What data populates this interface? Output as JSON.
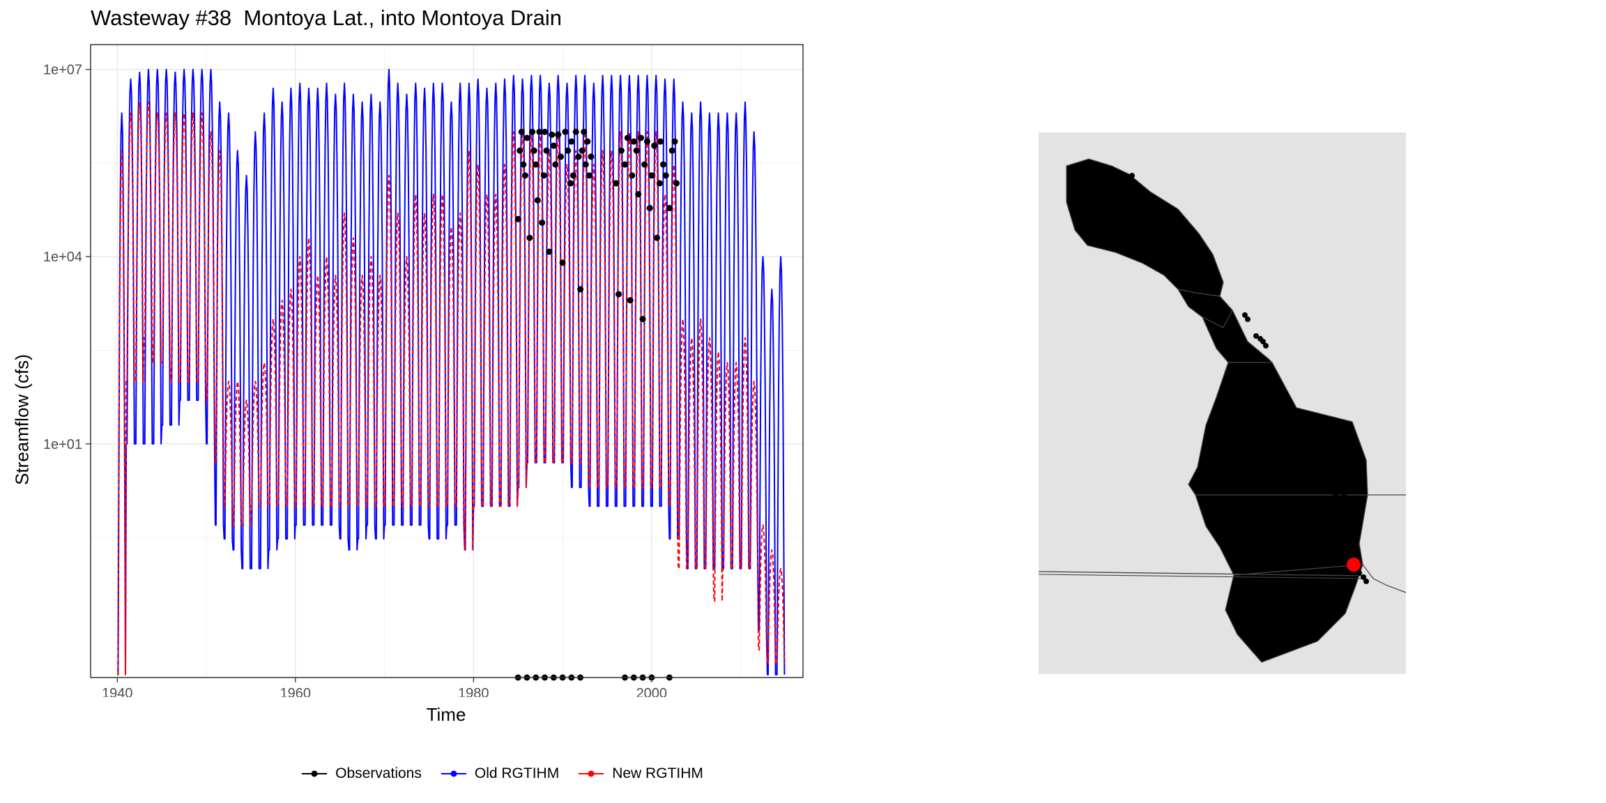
{
  "chart_data": [
    {
      "type": "line",
      "title": "Wasteway #38  Montoya Lat., into Montoya Drain",
      "xlabel": "Time",
      "ylabel": "Streamflow (cfs)",
      "x_range": [
        1937,
        2017
      ],
      "y_scale": "log10",
      "y_range": [
        0.0018,
        25000000
      ],
      "x_ticks": [
        "1940",
        "1960",
        "1980",
        "2000"
      ],
      "y_ticks": [
        "1e+01",
        "1e+04",
        "1e+07"
      ],
      "grid": true,
      "legend_position": "bottom",
      "legend": [
        "Observations",
        "Old RGTIHM",
        "New RGTIHM"
      ],
      "colors": {
        "Observations": "#000000",
        "Old RGTIHM": "#0000ff",
        "New RGTIHM": "#ff0000"
      },
      "series": [
        {
          "name": "Old RGTIHM",
          "style": "solid",
          "approximation": "monthly seasonal cycle; per-year peak and low flow",
          "years": [
            1940,
            1941,
            1942,
            1943,
            1944,
            1945,
            1946,
            1947,
            1948,
            1949,
            1950,
            1951,
            1952,
            1953,
            1954,
            1955,
            1956,
            1957,
            1958,
            1959,
            1960,
            1961,
            1962,
            1963,
            1964,
            1965,
            1966,
            1967,
            1968,
            1969,
            1970,
            1971,
            1972,
            1973,
            1974,
            1975,
            1976,
            1977,
            1978,
            1979,
            1980,
            1981,
            1982,
            1983,
            1984,
            1985,
            1986,
            1987,
            1988,
            1989,
            1990,
            1991,
            1992,
            1993,
            1994,
            1995,
            1996,
            1997,
            1998,
            1999,
            2000,
            2001,
            2002,
            2003,
            2004,
            2005,
            2006,
            2007,
            2008,
            2009,
            2010,
            2011,
            2012,
            2013,
            2014
          ],
          "annual_peak": [
            2000000,
            7000000,
            9000000,
            10000000,
            10000000,
            10000000,
            9000000,
            10000000,
            10000000,
            10000000,
            10000000,
            3000000,
            2000000,
            500000,
            200000,
            1000000,
            2000000,
            5000000,
            3000000,
            5000000,
            6000000,
            5000000,
            5000000,
            6000000,
            4000000,
            6000000,
            4000000,
            3000000,
            4000000,
            3000000,
            10000000,
            6000000,
            4000000,
            6000000,
            5000000,
            6000000,
            6000000,
            3000000,
            6000000,
            6000000,
            7000000,
            5000000,
            6000000,
            7000000,
            8000000,
            7000000,
            8000000,
            8000000,
            6000000,
            8000000,
            6000000,
            8000000,
            8000000,
            6000000,
            8000000,
            8000000,
            8000000,
            8000000,
            8000000,
            8000000,
            8000000,
            7000000,
            7000000,
            3000000,
            2000000,
            3000000,
            2000000,
            2000000,
            2000000,
            2000000,
            3000000,
            1000000,
            10000,
            3000,
            10000
          ],
          "annual_low": [
            0.002,
            10,
            10,
            10,
            10,
            20,
            20,
            50,
            50,
            50,
            10,
            0.5,
            0.3,
            0.2,
            0.1,
            0.1,
            0.1,
            0.2,
            0.3,
            0.3,
            0.5,
            0.5,
            0.5,
            0.5,
            0.5,
            0.3,
            0.2,
            0.3,
            0.5,
            0.3,
            0.5,
            0.5,
            0.5,
            0.5,
            0.5,
            0.3,
            0.3,
            0.5,
            0.5,
            0.2,
            1,
            1,
            1,
            1,
            1,
            2,
            5,
            5,
            5,
            5,
            5,
            2,
            2,
            1,
            1,
            1,
            1,
            1,
            1,
            1,
            1,
            1,
            0.3,
            0.3,
            0.1,
            0.1,
            0.1,
            0.1,
            0.1,
            0.1,
            0.1,
            0.1,
            0.01,
            0.002,
            0.002
          ]
        },
        {
          "name": "New RGTIHM",
          "style": "dashed",
          "approximation": "monthly seasonal cycle; per-year peak and low flow",
          "years": [
            1940,
            1941,
            1942,
            1943,
            1944,
            1945,
            1946,
            1947,
            1948,
            1949,
            1950,
            1951,
            1952,
            1953,
            1954,
            1955,
            1956,
            1957,
            1958,
            1959,
            1960,
            1961,
            1962,
            1963,
            1964,
            1965,
            1966,
            1967,
            1968,
            1969,
            1970,
            1971,
            1972,
            1973,
            1974,
            1975,
            1976,
            1977,
            1978,
            1979,
            1980,
            1981,
            1982,
            1983,
            1984,
            1985,
            1986,
            1987,
            1988,
            1989,
            1990,
            1991,
            1992,
            1993,
            1994,
            1995,
            1996,
            1997,
            1998,
            1999,
            2000,
            2001,
            2002,
            2003,
            2004,
            2005,
            2006,
            2007,
            2008,
            2009,
            2010,
            2011,
            2012,
            2013,
            2014
          ],
          "annual_peak": [
            500000,
            2000000,
            3000000,
            3000000,
            2000000,
            2000000,
            2000000,
            2000000,
            2000000,
            2000000,
            1000000,
            500000,
            100,
            100,
            50,
            100,
            200,
            1000,
            2000,
            3000,
            10000,
            20000,
            5000,
            10000,
            5000,
            50000,
            20000,
            5000,
            10000,
            5000,
            200000,
            50000,
            10000,
            100000,
            50000,
            100000,
            100000,
            30000,
            50000,
            500000,
            300000,
            100000,
            100000,
            300000,
            1000000,
            1000000,
            1000000,
            1000000,
            500000,
            1000000,
            300000,
            500000,
            1000000,
            300000,
            500000,
            500000,
            1000000,
            1000000,
            1000000,
            1000000,
            1000000,
            100000,
            300000,
            1000,
            500,
            1000,
            500,
            300,
            200,
            200,
            500,
            100,
            0.5,
            0.2,
            0.1
          ],
          "annual_low": [
            0.002,
            100,
            100,
            500,
            200,
            200,
            100,
            100,
            100,
            100,
            50,
            5,
            1,
            0.5,
            0.5,
            1,
            1,
            1,
            1,
            1,
            1,
            1,
            1,
            1,
            1,
            1,
            1,
            1,
            1,
            1,
            1,
            1,
            1,
            1,
            1,
            1,
            1,
            1,
            1,
            0.2,
            1,
            1,
            1,
            1,
            1,
            2,
            5,
            5,
            5,
            5,
            5,
            5,
            5,
            2,
            2,
            2,
            2,
            2,
            2,
            2,
            2,
            2,
            1,
            0.1,
            0.1,
            0.1,
            0.1,
            0.03,
            0.1,
            0.1,
            0.1,
            0.1,
            0.005,
            0.003,
            0.003
          ]
        },
        {
          "name": "Observations",
          "style": "points",
          "points": [
            {
              "x": 1985.0,
              "y": 40000
            },
            {
              "x": 1985.2,
              "y": 500000
            },
            {
              "x": 1985.4,
              "y": 1000000
            },
            {
              "x": 1985.6,
              "y": 300000
            },
            {
              "x": 1985.8,
              "y": 200000
            },
            {
              "x": 1986.0,
              "y": 800000
            },
            {
              "x": 1986.3,
              "y": 20000
            },
            {
              "x": 1986.6,
              "y": 1000000
            },
            {
              "x": 1986.8,
              "y": 500000
            },
            {
              "x": 1987.0,
              "y": 300000
            },
            {
              "x": 1987.2,
              "y": 80000
            },
            {
              "x": 1987.4,
              "y": 1000000
            },
            {
              "x": 1987.7,
              "y": 35000
            },
            {
              "x": 1987.9,
              "y": 200000
            },
            {
              "x": 1988.0,
              "y": 1000000
            },
            {
              "x": 1988.2,
              "y": 500000
            },
            {
              "x": 1988.5,
              "y": 12000
            },
            {
              "x": 1988.8,
              "y": 900000
            },
            {
              "x": 1989.0,
              "y": 600000
            },
            {
              "x": 1989.2,
              "y": 300000
            },
            {
              "x": 1989.5,
              "y": 900000
            },
            {
              "x": 1989.8,
              "y": 400000
            },
            {
              "x": 1990.0,
              "y": 8000
            },
            {
              "x": 1990.3,
              "y": 1000000
            },
            {
              "x": 1990.6,
              "y": 500000
            },
            {
              "x": 1990.9,
              "y": 150000
            },
            {
              "x": 1991.0,
              "y": 700000
            },
            {
              "x": 1991.2,
              "y": 200000
            },
            {
              "x": 1991.5,
              "y": 1000000
            },
            {
              "x": 1991.8,
              "y": 400000
            },
            {
              "x": 1992.0,
              "y": 3000
            },
            {
              "x": 1992.2,
              "y": 500000
            },
            {
              "x": 1992.4,
              "y": 1000000
            },
            {
              "x": 1992.6,
              "y": 300000
            },
            {
              "x": 1992.8,
              "y": 700000
            },
            {
              "x": 1993.0,
              "y": 200000
            },
            {
              "x": 1993.2,
              "y": 400000
            },
            {
              "x": 1996.0,
              "y": 150000
            },
            {
              "x": 1996.3,
              "y": 2500
            },
            {
              "x": 1996.6,
              "y": 500000
            },
            {
              "x": 1997.0,
              "y": 300000
            },
            {
              "x": 1997.3,
              "y": 800000
            },
            {
              "x": 1997.6,
              "y": 2000
            },
            {
              "x": 1997.8,
              "y": 200000
            },
            {
              "x": 1998.0,
              "y": 700000
            },
            {
              "x": 1998.3,
              "y": 500000
            },
            {
              "x": 1998.5,
              "y": 100000
            },
            {
              "x": 1998.8,
              "y": 800000
            },
            {
              "x": 1999.0,
              "y": 1000
            },
            {
              "x": 1999.2,
              "y": 300000
            },
            {
              "x": 1999.5,
              "y": 700000
            },
            {
              "x": 1999.8,
              "y": 60000
            },
            {
              "x": 2000.0,
              "y": 200000
            },
            {
              "x": 2000.3,
              "y": 600000
            },
            {
              "x": 2000.6,
              "y": 20000
            },
            {
              "x": 2000.9,
              "y": 150000
            },
            {
              "x": 2001.0,
              "y": 700000
            },
            {
              "x": 2001.3,
              "y": 300000
            },
            {
              "x": 2001.6,
              "y": 200000
            },
            {
              "x": 2002.0,
              "y": 60000
            },
            {
              "x": 2002.3,
              "y": 500000
            },
            {
              "x": 2002.6,
              "y": 700000
            },
            {
              "x": 2002.8,
              "y": 150000
            }
          ],
          "floor_points_x": [
            1985,
            1986,
            1987,
            1988,
            1989,
            1990,
            1991,
            1992,
            1997,
            1998,
            1999,
            2000,
            2002
          ]
        }
      ]
    },
    {
      "type": "map",
      "series": [
        {
          "name": "region-1",
          "fill": "#b9dfe0"
        },
        {
          "name": "region-2",
          "fill": "#c8d0e8"
        },
        {
          "name": "region-3",
          "fill": "#e2c7e2"
        },
        {
          "name": "region-4",
          "fill": "#b9dcc4"
        },
        {
          "name": "region-5",
          "fill": "#dcd7b5"
        },
        {
          "name": "region-6",
          "fill": "#e8cdd2"
        }
      ],
      "markers": {
        "site_color": "#000000",
        "selected_site_color": "#ff0000"
      }
    }
  ]
}
